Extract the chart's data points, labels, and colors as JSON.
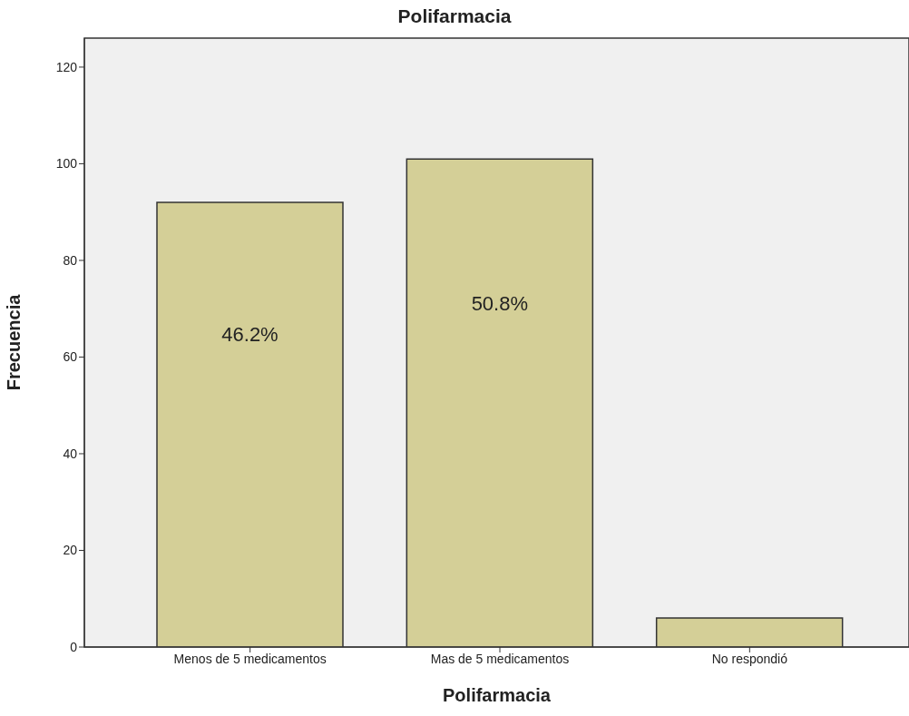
{
  "chart_data": {
    "type": "bar",
    "title": "Polifarmacia",
    "xlabel": "Polifarmacia",
    "ylabel": "Frecuencia",
    "categories": [
      "Menos de 5 medicamentos",
      "Mas de 5 medicamentos",
      "No respondió"
    ],
    "values": [
      92,
      101,
      6
    ],
    "color": "#d4cf97",
    "annotations": [
      "46.2%",
      "50.8%"
    ],
    "ylim": [
      0,
      126
    ],
    "yticks": [
      0,
      20,
      40,
      60,
      80,
      100,
      120
    ],
    "grid": false,
    "legend": false
  }
}
